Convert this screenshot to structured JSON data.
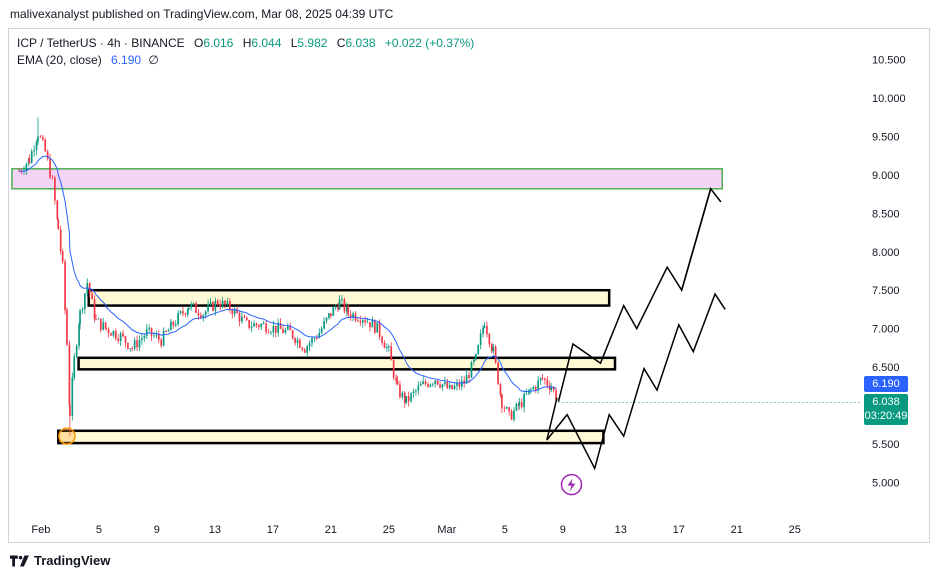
{
  "header": {
    "publisher": "malivexanalyst published on TradingView.com, Mar 08, 2025 04:39 UTC"
  },
  "legend": {
    "symbol": "ICP / TetherUS · 4h · BINANCE",
    "open_label": "O",
    "open": "6.016",
    "high_label": "H",
    "high": "6.044",
    "low_label": "L",
    "low": "5.982",
    "close_label": "C",
    "close": "6.038",
    "change": "+0.022 (+0.37%)",
    "ema_label": "EMA (20, close)",
    "ema_value": "6.190",
    "ema_extra": "∅"
  },
  "price_tags": {
    "ema": "6.190",
    "last": "6.038",
    "countdown": "03:20:49"
  },
  "footer": {
    "brand": "TradingView"
  },
  "colors": {
    "up": "#089981",
    "down": "#f23645",
    "ema": "#2962ff",
    "zone_fill": "#fff9d6",
    "top_zone_fill": "#f3d4f5",
    "top_zone_stroke": "#4caf50"
  },
  "chart_data": {
    "type": "candlestick",
    "y_ticks": [
      "10.500",
      "10.000",
      "9.500",
      "9.000",
      "8.500",
      "8.000",
      "7.500",
      "7.000",
      "6.500",
      "6.000",
      "5.500",
      "5.000"
    ],
    "y_tick_values": [
      10.5,
      10.0,
      9.5,
      9.0,
      8.5,
      8.0,
      7.5,
      7.0,
      6.5,
      6.0,
      5.5,
      5.0
    ],
    "x_ticks": [
      "Feb",
      "5",
      "9",
      "13",
      "17",
      "21",
      "25",
      "Mar",
      "5",
      "9",
      "13",
      "17",
      "21",
      "25"
    ],
    "x_tick_days": [
      0,
      4,
      8,
      12,
      16,
      20,
      24,
      28,
      32,
      36,
      40,
      44,
      48,
      52
    ],
    "ylim": [
      4.6,
      10.9
    ],
    "xlim_days": [
      -2.2,
      56.5
    ],
    "zones": [
      {
        "y_top": 9.08,
        "y_bottom": 8.82,
        "x_start_day": -2.0,
        "x_end_day": 47.0,
        "kind": "resistance-top"
      },
      {
        "y_top": 7.5,
        "y_bottom": 7.3,
        "x_start_day": 3.3,
        "x_end_day": 39.2,
        "kind": "range-high"
      },
      {
        "y_top": 6.62,
        "y_bottom": 6.47,
        "x_start_day": 2.6,
        "x_end_day": 39.6,
        "kind": "range-mid"
      },
      {
        "y_top": 5.67,
        "y_bottom": 5.51,
        "x_start_day": 1.2,
        "x_end_day": 38.8,
        "kind": "range-low"
      }
    ],
    "projection_paths": [
      [
        [
          35.7,
          6.05
        ],
        [
          36.7,
          6.8
        ],
        [
          38.6,
          6.55
        ],
        [
          40.2,
          7.3
        ],
        [
          41.1,
          7.0
        ],
        [
          43.2,
          7.8
        ],
        [
          44.2,
          7.5
        ],
        [
          46.2,
          8.82
        ],
        [
          46.9,
          8.65
        ]
      ],
      [
        [
          35.6,
          6.1
        ],
        [
          34.9,
          5.55
        ],
        [
          36.3,
          5.88
        ],
        [
          38.2,
          5.18
        ],
        [
          39.2,
          5.88
        ],
        [
          40.2,
          5.6
        ],
        [
          41.6,
          6.48
        ],
        [
          42.5,
          6.2
        ],
        [
          44.0,
          7.05
        ],
        [
          45.0,
          6.7
        ],
        [
          46.5,
          7.45
        ],
        [
          47.2,
          7.25
        ]
      ]
    ],
    "markers": [
      {
        "day": 1.8,
        "price": 5.6,
        "kind": "circle"
      },
      {
        "day": 36.6,
        "price": 4.97,
        "kind": "lightning-icon"
      }
    ],
    "last_price": 6.038,
    "ema_last": 6.19,
    "key_points": [
      [
        -1.5,
        9.05
      ],
      [
        -0.8,
        9.2
      ],
      [
        -0.2,
        9.55
      ],
      [
        0.3,
        9.3
      ],
      [
        0.8,
        8.9
      ],
      [
        1.2,
        8.3
      ],
      [
        1.5,
        7.8
      ],
      [
        1.8,
        6.8
      ],
      [
        2.0,
        5.9
      ],
      [
        2.3,
        6.6
      ],
      [
        2.7,
        7.2
      ],
      [
        3.2,
        7.6
      ],
      [
        3.8,
        7.1
      ],
      [
        4.5,
        7.0
      ],
      [
        5.5,
        6.9
      ],
      [
        6.3,
        6.75
      ],
      [
        7.3,
        6.95
      ],
      [
        8.3,
        6.85
      ],
      [
        9.3,
        7.1
      ],
      [
        10.2,
        7.3
      ],
      [
        11.2,
        7.2
      ],
      [
        12.2,
        7.35
      ],
      [
        13.2,
        7.25
      ],
      [
        14.2,
        7.05
      ],
      [
        15.2,
        7.05
      ],
      [
        16.2,
        7.0
      ],
      [
        17.2,
        6.95
      ],
      [
        18.2,
        6.75
      ],
      [
        19.2,
        6.95
      ],
      [
        20.0,
        7.2
      ],
      [
        20.6,
        7.35
      ],
      [
        21.2,
        7.2
      ],
      [
        22.2,
        7.15
      ],
      [
        23.2,
        7.0
      ],
      [
        24.0,
        6.7
      ],
      [
        24.6,
        6.2
      ],
      [
        25.2,
        6.05
      ],
      [
        26.2,
        6.25
      ],
      [
        27.2,
        6.35
      ],
      [
        28.2,
        6.2
      ],
      [
        29.2,
        6.3
      ],
      [
        30.0,
        6.6
      ],
      [
        30.6,
        7.1
      ],
      [
        31.2,
        6.7
      ],
      [
        31.8,
        6.05
      ],
      [
        32.3,
        5.85
      ],
      [
        33.0,
        6.0
      ],
      [
        33.8,
        6.2
      ],
      [
        34.6,
        6.35
      ],
      [
        35.2,
        6.25
      ],
      [
        35.7,
        6.04
      ]
    ]
  }
}
